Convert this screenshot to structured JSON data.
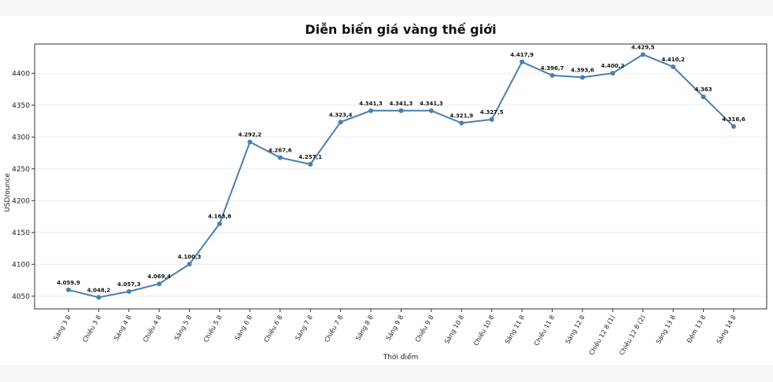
{
  "chart_data": {
    "type": "line",
    "title": "Diễn biến giá vàng thế giới",
    "xlabel": "Thời điểm",
    "ylabel": "USD/ounce",
    "categories": [
      "Sáng 3 8",
      "Chiều 3 8",
      "Sáng 4 8",
      "Chiều 4 8",
      "Sáng 5 8",
      "Chiều 5 8",
      "Sáng 6 8",
      "Chiều 6 8",
      "Sáng 7 8",
      "Chiều 7 8",
      "Sáng 8 8",
      "Sáng 9 8",
      "Chiều 9 8",
      "Sáng 10 8",
      "Chiều 10 8",
      "Sáng 11 8",
      "Chiều 11 8",
      "Sáng 12 8",
      "Chiều 12 8 (1)",
      "Chiều 12 8 (2)",
      "Sáng 13 8",
      "Đêm 13 8",
      "Sáng 14 8"
    ],
    "values": [
      4059.9,
      4048.2,
      4057.3,
      4069.4,
      4100.3,
      4163.8,
      4292.2,
      4267.6,
      4257.1,
      4323.4,
      4341.3,
      4341.3,
      4341.3,
      4321.9,
      4327.5,
      4417.9,
      4396.7,
      4393.6,
      4400.2,
      4429.5,
      4410.2,
      4363,
      4316.6
    ],
    "data_labels": [
      "4.059,9",
      "4.048,2",
      "4.057,3",
      "4.069,4",
      "4.100,3",
      "4.163,8",
      "4.292,2",
      "4.267,6",
      "4.257,1",
      "4.323,4",
      "4.341,3",
      "4.341,3",
      "4.341,3",
      "4.321,9",
      "4.327,5",
      "4.417,9",
      "4.396,7",
      "4.393,6",
      "4.400,2",
      "4.429,5",
      "4.410,2",
      "4.363",
      "4.316,6"
    ],
    "yticks": [
      4050,
      4100,
      4150,
      4200,
      4250,
      4300,
      4350,
      4400
    ],
    "ylim": [
      4030,
      4446
    ],
    "grid": "horizontal",
    "line_color": "#4a7eaf"
  }
}
